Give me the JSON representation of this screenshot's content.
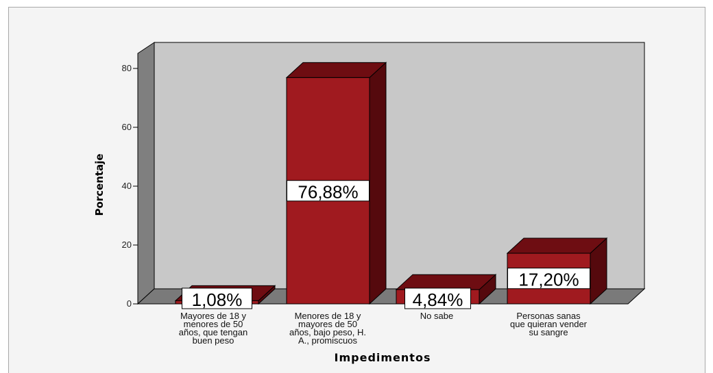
{
  "chart_data": {
    "type": "bar",
    "title": "",
    "xlabel": "Impedimentos",
    "ylabel": "Porcentaje",
    "ylim": [
      0,
      80
    ],
    "yticks": [
      "0",
      "20",
      "40",
      "60",
      "80"
    ],
    "categories": [
      "Mayores de 18 y menores de 50 años, que tengan buen peso",
      "Menores de 18 y mayores de 50 años, bajo peso, H. A., promiscuos",
      "No sabe",
      "Personas sanas que quieran vender su sangre"
    ],
    "category_lines": [
      [
        "Mayores de 18 y",
        "menores de 50",
        "años, que tengan",
        "buen peso"
      ],
      [
        "Menores de 18 y",
        "mayores de 50",
        "años, bajo peso, H.",
        "A., promiscuos"
      ],
      [
        "No sabe"
      ],
      [
        "Personas sanas",
        "que quieran vender",
        "su sangre"
      ]
    ],
    "values": [
      1.08,
      76.88,
      4.84,
      17.2
    ],
    "data_labels": [
      "1,08%",
      "76,88%",
      "4,84%",
      "17,20%"
    ],
    "grid": false,
    "legend": "none",
    "colors": {
      "bar_front": "#a01a1f",
      "bar_top": "#6e0d12",
      "bar_side": "#55090d",
      "plot_back": "#c8c8c8",
      "plot_floor": "#7a7a7a",
      "plot_left_wall": "#7f7f7f"
    }
  }
}
